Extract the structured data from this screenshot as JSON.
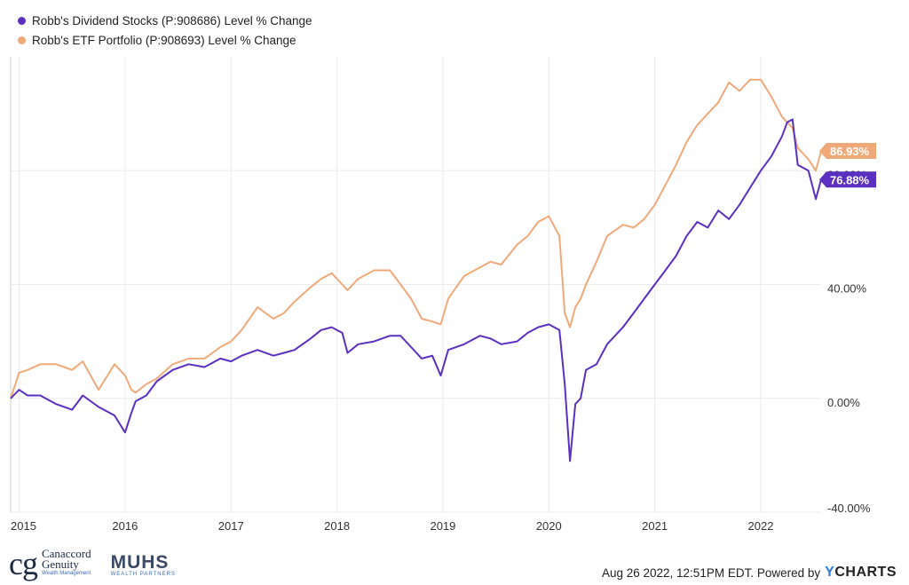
{
  "legend": [
    {
      "label": "Robb's Dividend Stocks (P:908686) Level % Change",
      "color": "#5b2fc0"
    },
    {
      "label": "Robb's ETF Portfolio (P:908693) Level % Change",
      "color": "#f0aa7a"
    }
  ],
  "chart_data": {
    "type": "line",
    "title": "",
    "xlabel": "",
    "ylabel": "",
    "x_ticks": [
      "2015",
      "2016",
      "2017",
      "2018",
      "2019",
      "2020",
      "2021",
      "2022"
    ],
    "y_ticks": [
      "-40.00%",
      "0.00%",
      "40.00%",
      "80.00%"
    ],
    "ylim": [
      -40,
      120
    ],
    "xlim": [
      2014.92,
      2022.57
    ],
    "grid": true,
    "legend_position": "top-left",
    "series": [
      {
        "name": "Robb's Dividend Stocks (P:908686) Level % Change",
        "color": "#5b2fc0",
        "end_label": "76.88%",
        "x": [
          2014.92,
          2015.0,
          2015.08,
          2015.2,
          2015.35,
          2015.5,
          2015.6,
          2015.75,
          2015.9,
          2016.0,
          2016.06,
          2016.1,
          2016.2,
          2016.3,
          2016.45,
          2016.6,
          2016.75,
          2016.9,
          2017.0,
          2017.1,
          2017.25,
          2017.4,
          2017.5,
          2017.6,
          2017.75,
          2017.85,
          2017.95,
          2018.05,
          2018.1,
          2018.2,
          2018.35,
          2018.5,
          2018.6,
          2018.7,
          2018.8,
          2018.9,
          2018.98,
          2019.05,
          2019.2,
          2019.35,
          2019.45,
          2019.55,
          2019.7,
          2019.8,
          2019.9,
          2020.0,
          2020.1,
          2020.15,
          2020.2,
          2020.25,
          2020.3,
          2020.35,
          2020.45,
          2020.55,
          2020.7,
          2020.8,
          2020.9,
          2021.0,
          2021.1,
          2021.2,
          2021.3,
          2021.4,
          2021.5,
          2021.6,
          2021.7,
          2021.8,
          2021.9,
          2022.0,
          2022.1,
          2022.2,
          2022.25,
          2022.3,
          2022.35,
          2022.45,
          2022.52,
          2022.57
        ],
        "y": [
          0,
          3,
          1,
          1,
          -2,
          -4,
          1,
          -3,
          -6,
          -12,
          -5,
          -1,
          1,
          6,
          10,
          12,
          11,
          14,
          13,
          15,
          17,
          15,
          16,
          17,
          21,
          24,
          25,
          23,
          16,
          19,
          20,
          22,
          22,
          18,
          14,
          15,
          8,
          17,
          19,
          22,
          21,
          19,
          20,
          23,
          25,
          26,
          24,
          5,
          -22,
          -2,
          0,
          10,
          12,
          19,
          25,
          30,
          35,
          40,
          45,
          50,
          57,
          62,
          60,
          66,
          63,
          68,
          74,
          80,
          85,
          92,
          97,
          98,
          82,
          80,
          70,
          76.88
        ]
      },
      {
        "name": "Robb's ETF Portfolio (P:908693) Level % Change",
        "color": "#f0aa7a",
        "end_label": "86.93%",
        "x": [
          2014.92,
          2015.0,
          2015.08,
          2015.2,
          2015.35,
          2015.5,
          2015.6,
          2015.75,
          2015.9,
          2016.0,
          2016.06,
          2016.1,
          2016.2,
          2016.3,
          2016.45,
          2016.6,
          2016.75,
          2016.9,
          2017.0,
          2017.1,
          2017.25,
          2017.4,
          2017.5,
          2017.6,
          2017.75,
          2017.85,
          2017.95,
          2018.05,
          2018.1,
          2018.2,
          2018.35,
          2018.5,
          2018.6,
          2018.7,
          2018.8,
          2018.9,
          2018.98,
          2019.05,
          2019.2,
          2019.35,
          2019.45,
          2019.55,
          2019.7,
          2019.8,
          2019.9,
          2020.0,
          2020.1,
          2020.15,
          2020.2,
          2020.25,
          2020.3,
          2020.35,
          2020.45,
          2020.55,
          2020.7,
          2020.8,
          2020.9,
          2021.0,
          2021.1,
          2021.2,
          2021.3,
          2021.4,
          2021.5,
          2021.6,
          2021.7,
          2021.8,
          2021.9,
          2022.0,
          2022.1,
          2022.2,
          2022.25,
          2022.3,
          2022.35,
          2022.45,
          2022.52,
          2022.57
        ],
        "y": [
          0,
          9,
          10,
          12,
          12,
          10,
          13,
          3,
          12,
          8,
          3,
          2,
          5,
          7,
          12,
          14,
          14,
          18,
          20,
          24,
          32,
          28,
          30,
          34,
          39,
          42,
          44,
          40,
          38,
          42,
          45,
          45,
          40,
          35,
          28,
          27,
          26,
          35,
          43,
          46,
          48,
          47,
          54,
          57,
          62,
          64,
          57,
          30,
          25,
          32,
          35,
          40,
          48,
          57,
          61,
          60,
          63,
          68,
          75,
          82,
          90,
          96,
          100,
          104,
          111,
          108,
          112,
          112,
          106,
          99,
          97,
          95,
          88,
          84,
          80,
          86.93
        ]
      }
    ]
  },
  "footer": {
    "logo_mark": "cg",
    "logo_line1": "Canaccord",
    "logo_line2": "Genuity",
    "logo_line3": "Wealth Management",
    "partner_name": "MUHS",
    "partner_sub": "WEALTH PARTNERS",
    "timestamp": "Aug 26 2022, 12:51PM EDT.",
    "powered_by": "Powered by",
    "brand_y": "Y",
    "brand_rest": "CHARTS"
  }
}
